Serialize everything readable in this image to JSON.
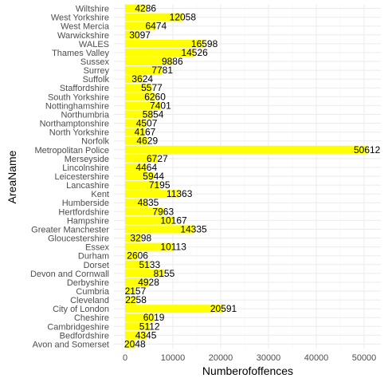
{
  "chart_data": {
    "type": "bar",
    "orientation": "horizontal",
    "xlabel": "Numberofoffences",
    "ylabel": "AreaName",
    "xlim": [
      0,
      51500
    ],
    "xticks": [
      0,
      10000,
      20000,
      30000,
      40000,
      50000
    ],
    "grid": true,
    "bar_color": "#ffff00",
    "categories": [
      "Wiltshire",
      "West Yorkshire",
      "West Mercia",
      "Warwickshire",
      "WALES",
      "Thames Valley",
      "Sussex",
      "Surrey",
      "Suffolk",
      "Staffordshire",
      "South Yorkshire",
      "Nottinghamshire",
      "Northumbria",
      "Northamptonshire",
      "North Yorkshire",
      "Norfolk",
      "Metropolitan Police",
      "Merseyside",
      "Lincolnshire",
      "Leicestershire",
      "Lancashire",
      "Kent",
      "Humberside",
      "Hertfordshire",
      "Hampshire",
      "Greater Manchester",
      "Gloucestershire",
      "Essex",
      "Durham",
      "Dorset",
      "Devon and Cornwall",
      "Derbyshire",
      "Cumbria",
      "Cleveland",
      "City of London",
      "Cheshire",
      "Cambridgeshire",
      "Bedfordshire",
      "Avon and Somerset"
    ],
    "values": [
      4286,
      12058,
      6474,
      3097,
      16598,
      14526,
      9886,
      7781,
      3624,
      5577,
      6260,
      7401,
      5854,
      4507,
      4167,
      4629,
      50612,
      6727,
      4464,
      5944,
      7195,
      11363,
      4835,
      7963,
      10167,
      14335,
      3298,
      10113,
      2606,
      5133,
      8155,
      4928,
      2157,
      2258,
      20591,
      6019,
      5112,
      4345,
      2048
    ],
    "data_labels": [
      "4286",
      "12058",
      "6474",
      "3097",
      "16598",
      "14526",
      "9886",
      "7781",
      "3624",
      "5577",
      "6260",
      "7401",
      "5854",
      "4507",
      "4167",
      "4629",
      "50612",
      "6727",
      "4464",
      "5944",
      "7195",
      "11363",
      "4835",
      "7963",
      "10167",
      "14335",
      "3298",
      "10113",
      "2606",
      "5133",
      "8155",
      "4928",
      "2157",
      "2258",
      "20591",
      "6019",
      "5112",
      "4345",
      "2048"
    ]
  }
}
